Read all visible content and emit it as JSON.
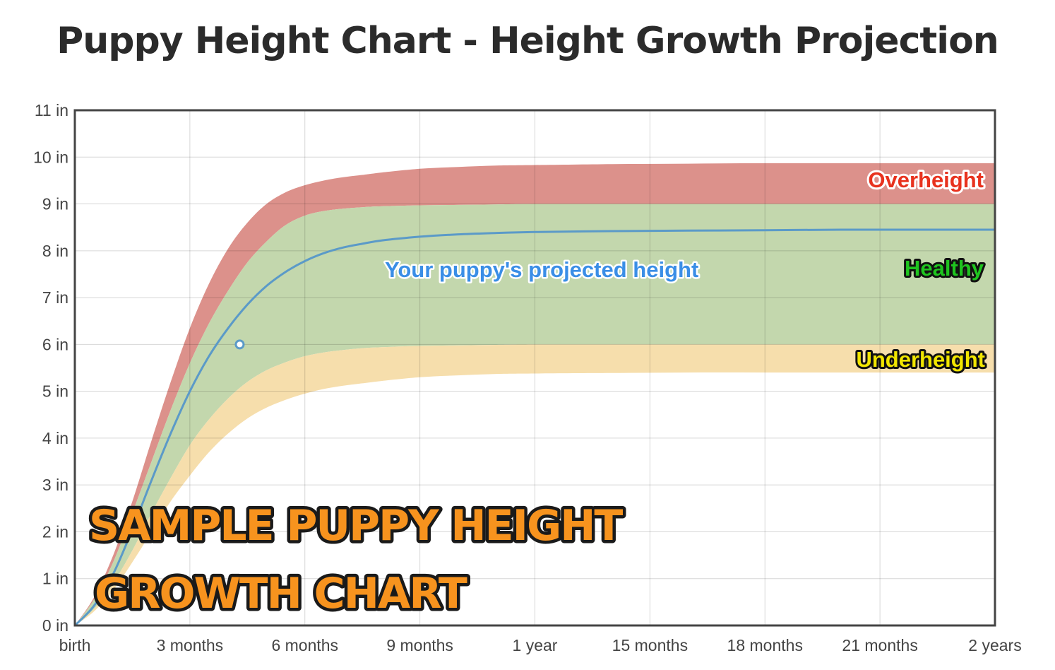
{
  "chart_data": {
    "type": "area",
    "title": "Puppy Height Chart - Height Growth Projection",
    "xlabel": "",
    "ylabel": "",
    "x_ticks": [
      "birth",
      "3 months",
      "6 months",
      "9 months",
      "1 year",
      "15 months",
      "18 months",
      "21 months",
      "2 years"
    ],
    "y_ticks": [
      "0 in",
      "1 in",
      "2 in",
      "3 in",
      "4 in",
      "5 in",
      "6 in",
      "7 in",
      "8 in",
      "9 in",
      "10 in",
      "11 in"
    ],
    "xlim_months": [
      0,
      24
    ],
    "ylim_in": [
      0,
      11
    ],
    "grid": true,
    "x_months": [
      0,
      0.5,
      1,
      1.5,
      2,
      2.5,
      3,
      3.5,
      4,
      4.5,
      5,
      5.5,
      6,
      6.5,
      7,
      7.5,
      8,
      9,
      10,
      11,
      12,
      14,
      16,
      18,
      20,
      22,
      24
    ],
    "bands": [
      {
        "name": "Overheight",
        "color": "#dc918b",
        "lower": [
          0,
          0.55,
          1.35,
          2.4,
          3.5,
          4.6,
          5.6,
          6.45,
          7.15,
          7.75,
          8.2,
          8.55,
          8.75,
          8.85,
          8.9,
          8.93,
          8.95,
          8.97,
          8.98,
          8.99,
          9.0,
          9.0,
          9.0,
          9.0,
          9.0,
          9.0,
          9.0
        ],
        "upper": [
          0,
          0.6,
          1.5,
          2.65,
          3.95,
          5.2,
          6.35,
          7.3,
          8.05,
          8.6,
          9.0,
          9.25,
          9.4,
          9.5,
          9.57,
          9.62,
          9.67,
          9.75,
          9.79,
          9.82,
          9.83,
          9.85,
          9.86,
          9.87,
          9.87,
          9.87,
          9.87
        ]
      },
      {
        "name": "Healthy",
        "color": "#c3d7ad",
        "lower": [
          0,
          0.35,
          0.9,
          1.6,
          2.4,
          3.15,
          3.85,
          4.4,
          4.85,
          5.2,
          5.45,
          5.62,
          5.75,
          5.83,
          5.88,
          5.92,
          5.94,
          5.97,
          5.98,
          5.99,
          6.0,
          6.0,
          6.0,
          6.0,
          6.0,
          6.0,
          6.0
        ],
        "upper": [
          0,
          0.55,
          1.35,
          2.4,
          3.5,
          4.6,
          5.6,
          6.45,
          7.15,
          7.75,
          8.2,
          8.55,
          8.75,
          8.85,
          8.9,
          8.93,
          8.95,
          8.97,
          8.98,
          8.99,
          9.0,
          9.0,
          9.0,
          9.0,
          9.0,
          9.0,
          9.0
        ]
      },
      {
        "name": "Underheight",
        "color": "#f6deac",
        "lower": [
          0,
          0.3,
          0.75,
          1.35,
          2.0,
          2.65,
          3.2,
          3.7,
          4.1,
          4.42,
          4.65,
          4.82,
          4.95,
          5.05,
          5.12,
          5.17,
          5.22,
          5.3,
          5.34,
          5.37,
          5.38,
          5.39,
          5.4,
          5.4,
          5.4,
          5.4,
          5.4
        ],
        "upper": [
          0,
          0.35,
          0.9,
          1.6,
          2.4,
          3.15,
          3.85,
          4.4,
          4.85,
          5.2,
          5.45,
          5.62,
          5.75,
          5.83,
          5.88,
          5.92,
          5.94,
          5.97,
          5.98,
          5.99,
          6.0,
          6.0,
          6.0,
          6.0,
          6.0,
          6.0,
          6.0
        ]
      }
    ],
    "series": [
      {
        "name": "Your puppy's projected height",
        "color": "#5b9ac8",
        "values": [
          0,
          0.42,
          1.1,
          2.05,
          3.1,
          4.1,
          5.0,
          5.75,
          6.35,
          6.85,
          7.25,
          7.55,
          7.78,
          7.95,
          8.07,
          8.15,
          8.22,
          8.3,
          8.35,
          8.38,
          8.4,
          8.42,
          8.43,
          8.44,
          8.45,
          8.45,
          8.45
        ]
      }
    ],
    "marker": {
      "x_month": 4.3,
      "y_in": 6.0
    },
    "annotations": [
      {
        "key": "overheight",
        "text": "Overheight",
        "fill": "#e8321e",
        "stroke": "#ffffff"
      },
      {
        "key": "healthy",
        "text": "Healthy",
        "fill": "#1fc41f",
        "stroke": "#111111"
      },
      {
        "key": "underheight",
        "text": "Underheight",
        "fill": "#f2e600",
        "stroke": "#111111"
      },
      {
        "key": "projected",
        "text": "Your puppy's projected height",
        "fill": "#3a8ee6"
      }
    ],
    "overlay_text": [
      "SAMPLE PUPPY HEIGHT",
      "GROWTH CHART"
    ]
  }
}
